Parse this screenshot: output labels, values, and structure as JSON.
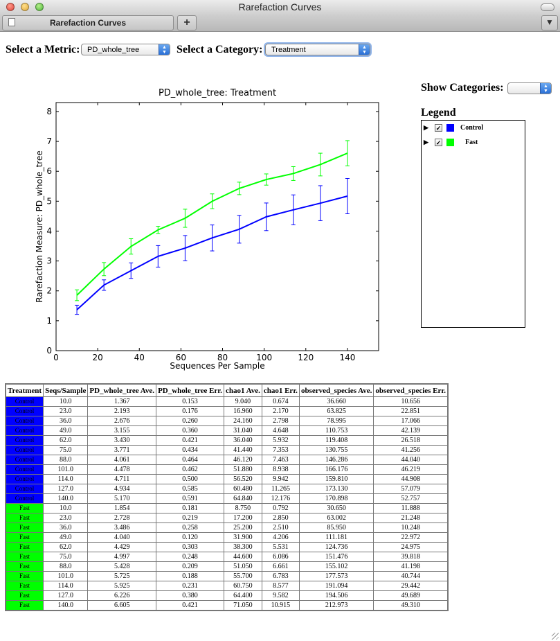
{
  "window": {
    "title": "Rarefaction Curves"
  },
  "tabs": [
    {
      "label": "Rarefaction Curves"
    }
  ],
  "new_tab_label": "+",
  "controls": {
    "metric_label": "Select a Metric:",
    "metric_value": "PD_whole_tree",
    "category_label": "Select a Category:",
    "category_value": "Treatment",
    "show_categories_label": "Show Categories:",
    "show_categories_value": ""
  },
  "legend": {
    "title": "Legend",
    "items": [
      {
        "label": "Control",
        "color": "#0000ff",
        "checked": true
      },
      {
        "label": "Fast",
        "color": "#00ff00",
        "checked": true
      }
    ]
  },
  "chart_data": {
    "type": "line",
    "title": "PD_whole_tree: Treatment",
    "xlabel": "Sequences Per Sample",
    "ylabel": "Rarefaction Measure: PD_whole_tree",
    "xlim": [
      0,
      155
    ],
    "ylim": [
      0,
      8.3
    ],
    "xticks": [
      0,
      20,
      40,
      60,
      80,
      100,
      120,
      140
    ],
    "yticks": [
      0,
      1,
      2,
      3,
      4,
      5,
      6,
      7,
      8
    ],
    "x": [
      10,
      23,
      36,
      49,
      62,
      75,
      88,
      101,
      114,
      127,
      140
    ],
    "series": [
      {
        "name": "Control",
        "color": "#0000ff",
        "values": [
          1.367,
          2.193,
          2.676,
          3.155,
          3.43,
          3.771,
          4.061,
          4.478,
          4.711,
          4.934,
          5.17
        ],
        "errors": [
          0.153,
          0.176,
          0.26,
          0.36,
          0.421,
          0.434,
          0.464,
          0.462,
          0.5,
          0.585,
          0.591
        ]
      },
      {
        "name": "Fast",
        "color": "#00ff00",
        "values": [
          1.854,
          2.728,
          3.486,
          4.04,
          4.429,
          4.997,
          5.428,
          5.725,
          5.925,
          6.226,
          6.605
        ],
        "errors": [
          0.181,
          0.219,
          0.258,
          0.12,
          0.303,
          0.248,
          0.209,
          0.188,
          0.231,
          0.38,
          0.421
        ]
      }
    ]
  },
  "table": {
    "headers": [
      "Treatment",
      "Seqs/Sample",
      "PD_whole_tree Ave.",
      "PD_whole_tree Err.",
      "chao1 Ave.",
      "chao1 Err.",
      "observed_species Ave.",
      "observed_species Err."
    ],
    "rows": [
      [
        "Control",
        "10.0",
        "1.367",
        "0.153",
        "9.040",
        "0.674",
        "36.660",
        "10.656"
      ],
      [
        "Control",
        "23.0",
        "2.193",
        "0.176",
        "16.960",
        "2.170",
        "63.825",
        "22.851"
      ],
      [
        "Control",
        "36.0",
        "2.676",
        "0.260",
        "24.160",
        "2.798",
        "78.995",
        "17.066"
      ],
      [
        "Control",
        "49.0",
        "3.155",
        "0.360",
        "31.040",
        "4.648",
        "110.753",
        "42.139"
      ],
      [
        "Control",
        "62.0",
        "3.430",
        "0.421",
        "36.040",
        "5.932",
        "119.408",
        "26.518"
      ],
      [
        "Control",
        "75.0",
        "3.771",
        "0.434",
        "41.440",
        "7.353",
        "130.755",
        "41.256"
      ],
      [
        "Control",
        "88.0",
        "4.061",
        "0.464",
        "46.120",
        "7.463",
        "146.286",
        "44.040"
      ],
      [
        "Control",
        "101.0",
        "4.478",
        "0.462",
        "51.880",
        "8.938",
        "166.176",
        "46.219"
      ],
      [
        "Control",
        "114.0",
        "4.711",
        "0.500",
        "56.520",
        "9.942",
        "159.810",
        "44.908"
      ],
      [
        "Control",
        "127.0",
        "4.934",
        "0.585",
        "60.480",
        "11.265",
        "173.130",
        "57.079"
      ],
      [
        "Control",
        "140.0",
        "5.170",
        "0.591",
        "64.840",
        "12.176",
        "170.898",
        "52.757"
      ],
      [
        "Fast",
        "10.0",
        "1.854",
        "0.181",
        "8.750",
        "0.792",
        "30.650",
        "11.888"
      ],
      [
        "Fast",
        "23.0",
        "2.728",
        "0.219",
        "17.200",
        "2.850",
        "63.002",
        "21.248"
      ],
      [
        "Fast",
        "36.0",
        "3.486",
        "0.258",
        "25.200",
        "2.510",
        "85.950",
        "10.248"
      ],
      [
        "Fast",
        "49.0",
        "4.040",
        "0.120",
        "31.900",
        "4.206",
        "111.181",
        "22.972"
      ],
      [
        "Fast",
        "62.0",
        "4.429",
        "0.303",
        "38.300",
        "5.531",
        "124.736",
        "24.975"
      ],
      [
        "Fast",
        "75.0",
        "4.997",
        "0.248",
        "44.600",
        "6.086",
        "151.476",
        "39.818"
      ],
      [
        "Fast",
        "88.0",
        "5.428",
        "0.209",
        "51.050",
        "6.661",
        "155.102",
        "41.198"
      ],
      [
        "Fast",
        "101.0",
        "5.725",
        "0.188",
        "55.700",
        "6.783",
        "177.573",
        "40.744"
      ],
      [
        "Fast",
        "114.0",
        "5.925",
        "0.231",
        "60.750",
        "8.577",
        "191.094",
        "29.442"
      ],
      [
        "Fast",
        "127.0",
        "6.226",
        "0.380",
        "64.400",
        "9.582",
        "194.506",
        "49.689"
      ],
      [
        "Fast",
        "140.0",
        "6.605",
        "0.421",
        "71.050",
        "10.915",
        "212.973",
        "49.310"
      ]
    ],
    "category_colors": {
      "Control": "#0000ff",
      "Fast": "#00ff00"
    }
  }
}
